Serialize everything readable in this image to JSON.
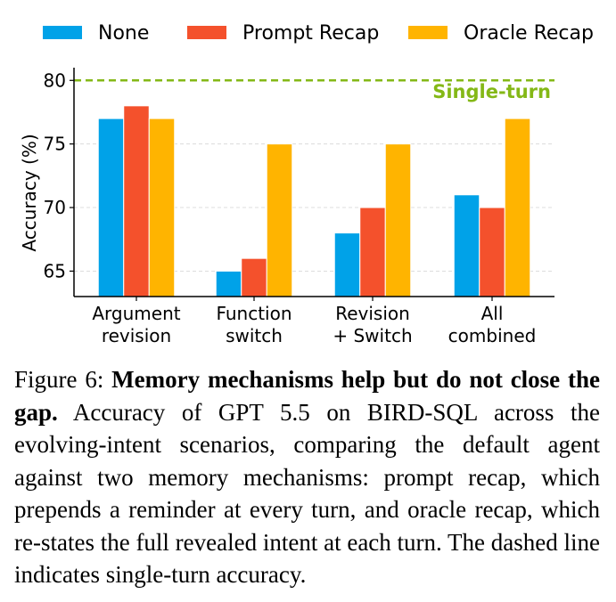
{
  "chart_data": {
    "type": "bar",
    "categories": [
      [
        "Argument",
        "revision"
      ],
      [
        "Function",
        "switch"
      ],
      [
        "Revision",
        "+ Switch"
      ],
      [
        "All",
        "combined"
      ]
    ],
    "series": [
      {
        "name": "None",
        "color": "#00a2e8",
        "values": [
          77,
          65,
          68,
          71
        ]
      },
      {
        "name": "Prompt Recap",
        "color": "#f4512c",
        "values": [
          78,
          66,
          70,
          70
        ]
      },
      {
        "name": "Oracle Recap",
        "color": "#ffb400",
        "values": [
          77,
          75,
          75,
          77
        ]
      }
    ],
    "ylabel": "Accuracy (%)",
    "ylim": [
      63,
      81
    ],
    "yticks": [
      65,
      70,
      75,
      80
    ],
    "grid": true,
    "legend_position": "top",
    "reference_line": {
      "value": 80,
      "label": "Single-turn",
      "color": "#84b817",
      "style": "dashed"
    }
  },
  "caption": {
    "prefix": "Figure 6: ",
    "bold": "Memory mechanisms help but do not close the gap.",
    "text": " Accuracy of GPT 5.5 on BIRD-SQL across the evolving-intent scenarios, comparing the default agent against two memory mechanisms: prompt recap, which prepends a reminder at every turn, and oracle recap, which re-states the full revealed intent at each turn. The dashed line indicates single-turn accuracy."
  }
}
